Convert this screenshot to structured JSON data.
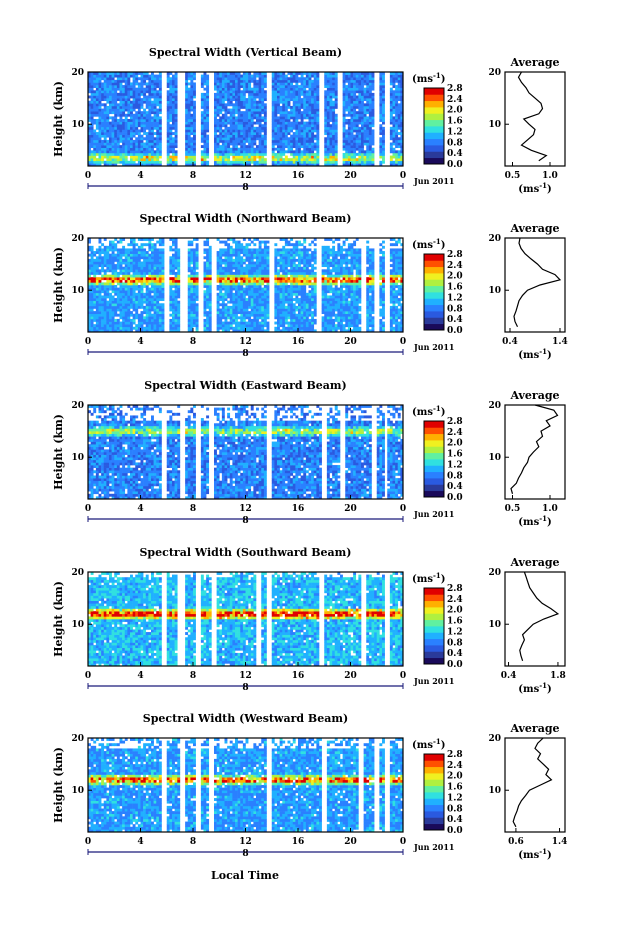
{
  "colors": {
    "background": "#ffffff",
    "axis": "#000000",
    "gap": "#ffffff",
    "timebar": "#1a1a7a",
    "colormap": [
      "#1a0a5a",
      "#2a3a9a",
      "#2a5ae0",
      "#2a80ff",
      "#20b0ff",
      "#30e0e0",
      "#60f0a0",
      "#b0f040",
      "#f0f020",
      "#ffb000",
      "#ff5000",
      "#e00000"
    ]
  },
  "xlabel": "Local Time",
  "chart_data": [
    {
      "type": "heatmap",
      "title": "Spectral Width (Vertical Beam)",
      "ylabel": "Height (km)",
      "xlim": [
        0,
        24
      ],
      "ylim": [
        2,
        20
      ],
      "xticks": [
        "0",
        "4",
        "8",
        "12",
        "16",
        "20",
        "0"
      ],
      "yticks": [
        "10",
        "20"
      ],
      "date_label": "Jun 2011",
      "day_marker": "8",
      "colorbar": {
        "unit_base": "(ms",
        "unit_sup": "-1",
        "unit_close": ")",
        "range": [
          0.0,
          2.8
        ],
        "ticks": [
          "2.8",
          "2.4",
          "2.0",
          "1.6",
          "1.2",
          "0.8",
          "0.4",
          "0.0"
        ]
      },
      "gaps": [
        [
          5.6,
          6.0
        ],
        [
          6.8,
          7.4
        ],
        [
          8.2,
          8.6
        ],
        [
          9.2,
          9.5
        ],
        [
          13.6,
          14.0
        ],
        [
          17.6,
          18.0
        ],
        [
          19.0,
          19.4
        ],
        [
          21.8,
          22.2
        ],
        [
          22.6,
          23.0
        ]
      ],
      "upper_empty_km": 20,
      "high_band_km": 3.5,
      "band_intensity": 0.6,
      "base_level": 0.2,
      "seed": 11,
      "average": {
        "title": "Average",
        "xlabel_base": "(ms",
        "xlabel_sup": "-1",
        "xlabel_close": ")",
        "xlim": [
          0.4,
          1.2
        ],
        "ylim": [
          2,
          20
        ],
        "xticks": [
          "0.5",
          "1.0"
        ],
        "yticks": [
          "10",
          "20"
        ],
        "height": [
          3,
          4,
          5,
          6,
          7,
          8,
          9,
          10,
          11,
          12,
          13,
          14,
          15,
          16,
          17,
          18,
          19,
          20
        ],
        "value": [
          0.85,
          0.95,
          0.75,
          0.62,
          0.7,
          0.78,
          0.8,
          0.72,
          0.65,
          0.85,
          0.9,
          0.88,
          0.8,
          0.72,
          0.68,
          0.62,
          0.58,
          0.62
        ]
      }
    },
    {
      "type": "heatmap",
      "title": "Spectral Width (Northward Beam)",
      "ylabel": "Height (km)",
      "xlim": [
        0,
        24
      ],
      "ylim": [
        2,
        20
      ],
      "xticks": [
        "0",
        "4",
        "8",
        "12",
        "16",
        "20",
        "0"
      ],
      "yticks": [
        "10",
        "20"
      ],
      "date_label": "Jun 2011",
      "day_marker": "8",
      "colorbar": {
        "unit_base": "(ms",
        "unit_sup": "-1",
        "unit_close": ")",
        "range": [
          0.0,
          2.8
        ],
        "ticks": [
          "2.8",
          "2.4",
          "2.0",
          "1.6",
          "1.2",
          "0.8",
          "0.4",
          "0.0"
        ]
      },
      "gaps": [
        [
          5.8,
          6.2
        ],
        [
          7.0,
          7.6
        ],
        [
          8.4,
          8.8
        ],
        [
          9.4,
          9.7
        ],
        [
          13.8,
          14.2
        ],
        [
          17.4,
          17.8
        ],
        [
          20.8,
          21.2
        ],
        [
          21.8,
          22.1
        ],
        [
          22.6,
          23.0
        ]
      ],
      "upper_empty_km": 18,
      "high_band_km": 12,
      "band_intensity": 0.9,
      "base_level": 0.25,
      "seed": 23,
      "average": {
        "title": "Average",
        "xlabel_base": "(ms",
        "xlabel_sup": "-1",
        "xlabel_close": ")",
        "xlim": [
          0.3,
          1.5
        ],
        "ylim": [
          2,
          20
        ],
        "xticks": [
          "0.4",
          "1.4"
        ],
        "yticks": [
          "10",
          "20"
        ],
        "height": [
          3,
          4,
          5,
          6,
          7,
          8,
          9,
          10,
          11,
          12,
          13,
          14,
          15,
          16,
          17,
          18,
          19,
          20
        ],
        "value": [
          0.55,
          0.5,
          0.48,
          0.52,
          0.55,
          0.58,
          0.65,
          0.75,
          1.0,
          1.4,
          1.3,
          1.05,
          0.95,
          0.82,
          0.7,
          0.62,
          0.58,
          0.6
        ]
      }
    },
    {
      "type": "heatmap",
      "title": "Spectral Width (Eastward Beam)",
      "ylabel": "Height (km)",
      "xlim": [
        0,
        24
      ],
      "ylim": [
        2,
        20
      ],
      "xticks": [
        "0",
        "4",
        "8",
        "12",
        "16",
        "20",
        "0"
      ],
      "yticks": [
        "10",
        "20"
      ],
      "date_label": "Jun 2011",
      "day_marker": "8",
      "colorbar": {
        "unit_base": "(ms",
        "unit_sup": "-1",
        "unit_close": ")",
        "range": [
          0.0,
          2.8
        ],
        "ticks": [
          "2.8",
          "2.4",
          "2.0",
          "1.6",
          "1.2",
          "0.8",
          "0.4",
          "0.0"
        ]
      },
      "gaps": [
        [
          5.6,
          6.0
        ],
        [
          6.9,
          7.4
        ],
        [
          8.2,
          8.5
        ],
        [
          9.3,
          9.6
        ],
        [
          13.6,
          14.0
        ],
        [
          17.8,
          18.2
        ],
        [
          19.2,
          19.5
        ],
        [
          21.7,
          22.0
        ],
        [
          22.6,
          22.9
        ]
      ],
      "upper_empty_km": 17,
      "high_band_km": 15,
      "band_intensity": 0.55,
      "base_level": 0.2,
      "seed": 37,
      "average": {
        "title": "Average",
        "xlabel_base": "(ms",
        "xlabel_sup": "-1",
        "xlabel_close": ")",
        "xlim": [
          0.4,
          1.2
        ],
        "ylim": [
          2,
          20
        ],
        "xticks": [
          "0.5",
          "1.0"
        ],
        "yticks": [
          "10",
          "20"
        ],
        "height": [
          3,
          4,
          5,
          6,
          7,
          8,
          9,
          10,
          11,
          12,
          13,
          14,
          15,
          16,
          17,
          18,
          19,
          20
        ],
        "value": [
          0.5,
          0.48,
          0.55,
          0.58,
          0.62,
          0.65,
          0.7,
          0.72,
          0.78,
          0.85,
          0.82,
          0.9,
          0.88,
          1.0,
          0.95,
          1.1,
          1.05,
          0.8
        ]
      }
    },
    {
      "type": "heatmap",
      "title": "Spectral Width (Southward Beam)",
      "ylabel": "Height (km)",
      "xlim": [
        0,
        24
      ],
      "ylim": [
        2,
        20
      ],
      "xticks": [
        "0",
        "4",
        "8",
        "12",
        "16",
        "20",
        "0"
      ],
      "yticks": [
        "10",
        "20"
      ],
      "date_label": "Jun 2011",
      "day_marker": "8",
      "colorbar": {
        "unit_base": "(ms",
        "unit_sup": "-1",
        "unit_close": ")",
        "range": [
          0.0,
          2.8
        ],
        "ticks": [
          "2.8",
          "2.4",
          "2.0",
          "1.6",
          "1.2",
          "0.8",
          "0.4",
          "0.0"
        ]
      },
      "gaps": [
        [
          5.6,
          6.0
        ],
        [
          6.8,
          7.4
        ],
        [
          8.2,
          8.6
        ],
        [
          9.4,
          9.7
        ],
        [
          12.8,
          13.2
        ],
        [
          13.6,
          14.0
        ],
        [
          17.6,
          18.0
        ],
        [
          20.8,
          21.2
        ],
        [
          22.6,
          23.0
        ]
      ],
      "upper_empty_km": 19,
      "high_band_km": 12,
      "band_intensity": 1.0,
      "base_level": 0.3,
      "seed": 51,
      "average": {
        "title": "Average",
        "xlabel_base": "(ms",
        "xlabel_sup": "-1",
        "xlabel_close": ")",
        "xlim": [
          0.3,
          2.0
        ],
        "ylim": [
          2,
          20
        ],
        "xticks": [
          "0.4",
          "1.8"
        ],
        "yticks": [
          "10",
          "20"
        ],
        "height": [
          3,
          4,
          5,
          6,
          7,
          8,
          9,
          10,
          11,
          12,
          13,
          14,
          15,
          16,
          17,
          18,
          19,
          20
        ],
        "value": [
          0.8,
          0.75,
          0.72,
          0.78,
          0.85,
          0.8,
          0.95,
          1.1,
          1.4,
          1.8,
          1.6,
          1.35,
          1.2,
          1.1,
          1.0,
          0.95,
          0.9,
          0.85
        ]
      }
    },
    {
      "type": "heatmap",
      "title": "Spectral Width (Westward Beam)",
      "ylabel": "Height (km)",
      "xlim": [
        0,
        24
      ],
      "ylim": [
        2,
        20
      ],
      "xticks": [
        "0",
        "4",
        "8",
        "12",
        "16",
        "20",
        "0"
      ],
      "yticks": [
        "10",
        "20"
      ],
      "date_label": "Jun 2011",
      "day_marker": "8",
      "colorbar": {
        "unit_base": "(ms",
        "unit_sup": "-1",
        "unit_close": ")",
        "range": [
          0.0,
          2.8
        ],
        "ticks": [
          "2.8",
          "2.4",
          "2.0",
          "1.6",
          "1.2",
          "0.8",
          "0.4",
          "0.0"
        ]
      },
      "gaps": [
        [
          5.6,
          6.0
        ],
        [
          6.9,
          7.4
        ],
        [
          8.2,
          8.6
        ],
        [
          9.3,
          9.6
        ],
        [
          13.6,
          14.0
        ],
        [
          17.8,
          18.2
        ],
        [
          20.6,
          21.0
        ],
        [
          21.8,
          22.2
        ],
        [
          22.6,
          23.0
        ]
      ],
      "upper_empty_km": 18,
      "high_band_km": 12,
      "band_intensity": 0.85,
      "base_level": 0.25,
      "seed": 67,
      "average": {
        "title": "Average",
        "xlabel_base": "(ms",
        "xlabel_sup": "-1",
        "xlabel_close": ")",
        "xlim": [
          0.4,
          1.5
        ],
        "ylim": [
          2,
          20
        ],
        "xticks": [
          "0.6",
          "1.4"
        ],
        "yticks": [
          "10",
          "20"
        ],
        "height": [
          3,
          4,
          5,
          6,
          7,
          8,
          9,
          10,
          11,
          12,
          13,
          14,
          15,
          16,
          17,
          18,
          19,
          20
        ],
        "value": [
          0.6,
          0.55,
          0.58,
          0.62,
          0.65,
          0.7,
          0.78,
          0.85,
          1.05,
          1.25,
          1.15,
          1.2,
          1.1,
          1.0,
          1.05,
          0.95,
          1.0,
          1.1
        ]
      }
    }
  ]
}
